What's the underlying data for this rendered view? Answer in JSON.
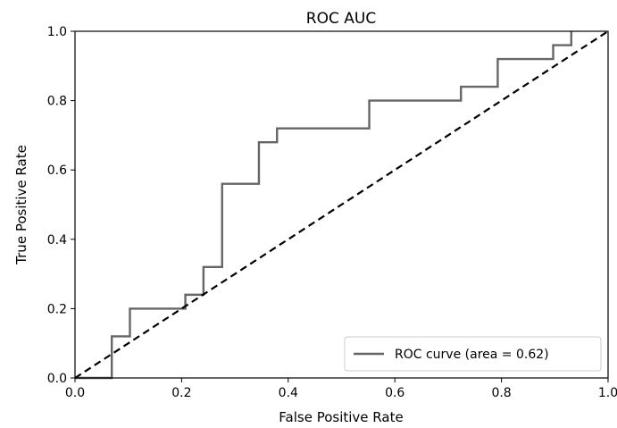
{
  "chart_data": {
    "type": "line",
    "title": "ROC AUC",
    "xlabel": "False Positive Rate",
    "ylabel": "True Positive Rate",
    "xlim": [
      0.0,
      1.0
    ],
    "ylim": [
      0.0,
      1.0
    ],
    "x_ticks": [
      "0.0",
      "0.2",
      "0.4",
      "0.6",
      "0.8",
      "1.0"
    ],
    "y_ticks": [
      "0.0",
      "0.2",
      "0.4",
      "0.6",
      "0.8",
      "1.0"
    ],
    "grid": false,
    "legend_position": "lower-right",
    "series": [
      {
        "name": "ROC curve (area = 0.62)",
        "color": "#666666",
        "style": "solid",
        "x": [
          0.0,
          0.069,
          0.069,
          0.103,
          0.103,
          0.207,
          0.207,
          0.241,
          0.241,
          0.276,
          0.276,
          0.345,
          0.345,
          0.379,
          0.379,
          0.552,
          0.552,
          0.724,
          0.724,
          0.793,
          0.793,
          0.897,
          0.897,
          0.931,
          0.931
        ],
        "y": [
          0.0,
          0.0,
          0.12,
          0.12,
          0.2,
          0.2,
          0.24,
          0.24,
          0.32,
          0.32,
          0.56,
          0.56,
          0.68,
          0.68,
          0.72,
          0.72,
          0.8,
          0.8,
          0.84,
          0.84,
          0.92,
          0.92,
          0.96,
          0.96,
          1.0
        ]
      },
      {
        "color": "#000000",
        "style": "dashed",
        "x": [
          0.0,
          1.0
        ],
        "y": [
          0.0,
          1.0
        ]
      }
    ]
  }
}
